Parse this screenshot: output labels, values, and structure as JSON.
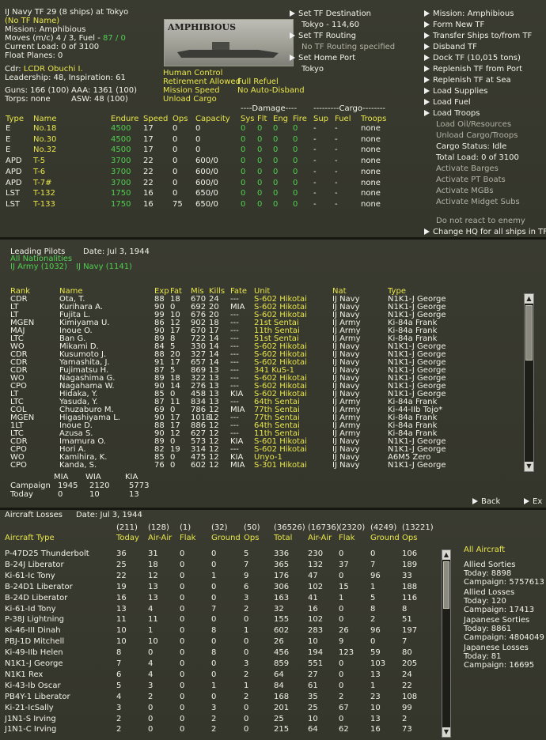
{
  "tf": {
    "header": "IJ Navy TF 29 (8 ships) at Tokyo",
    "tf_name": "(No TF Name)",
    "mission": "Mission: Amphibious",
    "moves_prefix": "Moves (m/c) 4 / 3, Fuel - ",
    "moves_fuel": "87 / 0",
    "current_load": "Current Load: 0 of 3100",
    "float_planes": "Float Planes: 0",
    "cdr_label": "Cdr: ",
    "cdr_name": "LCDR Obuchi I.",
    "leadership": "Leadership: 48, Inspiration: 61",
    "guns": "Guns: 166 (100)",
    "aaa": "AAA: 1361 (100)",
    "torps": "Torps: none",
    "asw": "ASW: 48 (100)",
    "image_title": "AMPHIBIOUS",
    "flags": [
      "Human Control",
      "Retirement Allowed",
      "Full Refuel",
      "Mission Speed",
      "No Auto-Disband",
      "Unload Cargo"
    ],
    "dest_label": "Set TF Destination",
    "dest_value": "Tokyo - 114,60",
    "routing_label": "Set TF Routing",
    "routing_value": "No TF Routing specified",
    "homeport_label": "Set Home Port",
    "homeport_value": "Tokyo",
    "damage_header": "----Damage----",
    "cargo_header": "---------Cargo--------",
    "columns": [
      "Type",
      "Name",
      "Endure",
      "Speed",
      "Ops",
      "Capacity",
      "Sys",
      "Flt",
      "Eng",
      "Fire",
      "Sup",
      "Fuel",
      "Troops"
    ],
    "ships": [
      [
        "E",
        "No.18",
        "4500",
        "17",
        "0",
        "0",
        "0",
        "0",
        "0",
        "0",
        "-",
        "-",
        "none"
      ],
      [
        "E",
        "No.30",
        "4500",
        "17",
        "0",
        "0",
        "0",
        "0",
        "0",
        "0",
        "-",
        "-",
        "none"
      ],
      [
        "E",
        "No.32",
        "4500",
        "17",
        "0",
        "0",
        "0",
        "0",
        "0",
        "0",
        "-",
        "-",
        "none"
      ],
      [
        "APD",
        "T-5",
        "3700",
        "22",
        "0",
        "600/0",
        "0",
        "0",
        "0",
        "0",
        "-",
        "-",
        "none"
      ],
      [
        "APD",
        "T-6",
        "3700",
        "22",
        "0",
        "600/0",
        "0",
        "0",
        "0",
        "0",
        "-",
        "-",
        "none"
      ],
      [
        "APD",
        "T-7#",
        "3700",
        "22",
        "0",
        "600/0",
        "0",
        "0",
        "0",
        "0",
        "-",
        "-",
        "none"
      ],
      [
        "LST",
        "T-132",
        "1750",
        "16",
        "0",
        "650/0",
        "0",
        "0",
        "0",
        "0",
        "-",
        "-",
        "none"
      ],
      [
        "LST",
        "T-133",
        "1750",
        "16",
        "75",
        "650/0",
        "0",
        "0",
        "0",
        "0",
        "-",
        "-",
        "none"
      ]
    ],
    "menu": [
      {
        "label": "Mission: Amphibious",
        "arrow": true,
        "active": true
      },
      {
        "label": "Form New TF",
        "arrow": true,
        "active": true
      },
      {
        "label": "Transfer Ships to/from TF",
        "arrow": true,
        "active": true
      },
      {
        "label": "Disband TF",
        "arrow": true,
        "active": true
      },
      {
        "label": "Dock TF (10,015 tons)",
        "arrow": true,
        "active": true
      },
      {
        "label": "Replenish TF from Port",
        "arrow": true,
        "active": true
      },
      {
        "label": "Replenish TF at Sea",
        "arrow": true,
        "active": true
      },
      {
        "label": "Load Supplies",
        "arrow": true,
        "active": true
      },
      {
        "label": "Load Fuel",
        "arrow": true,
        "active": true
      },
      {
        "label": "Load Troops",
        "arrow": true,
        "active": true
      },
      {
        "label": "Load Oil/Resources",
        "arrow": false,
        "active": false
      },
      {
        "label": "Unload Cargo/Troops",
        "arrow": false,
        "active": false
      },
      {
        "label": "Cargo Status: Idle",
        "arrow": false,
        "active": true
      },
      {
        "label": "Total Load: 0 of 3100",
        "arrow": false,
        "active": true
      },
      {
        "label": "Activate Barges",
        "arrow": false,
        "active": false
      },
      {
        "label": "Activate PT Boats",
        "arrow": false,
        "active": false
      },
      {
        "label": "Activate MGBs",
        "arrow": false,
        "active": false
      },
      {
        "label": "Activate Midget Subs",
        "arrow": false,
        "active": false
      },
      {
        "label": "Do not react to enemy",
        "arrow": false,
        "active": false
      },
      {
        "label": "Change HQ for all ships in TF",
        "arrow": true,
        "active": true
      }
    ]
  },
  "pilots": {
    "title": "Leading Pilots",
    "date": "Date: Jul 3, 1944",
    "filter_all": "All Nationalities",
    "filter_army": "IJ Army (1032)",
    "filter_navy": "IJ Navy (1141)",
    "columns": [
      "Rank",
      "Name",
      "Exp",
      "Fat",
      "Mis",
      "Kills",
      "Fate",
      "Unit",
      "Nat",
      "Type"
    ],
    "rows": [
      [
        "CDR",
        "Ota, T.",
        "88",
        "18",
        "670",
        "24",
        "---",
        "S-602 Hikotai",
        "IJ Navy",
        "N1K1-J George"
      ],
      [
        "LT",
        "Kurihara A.",
        "90",
        "0",
        "692",
        "20",
        "MIA",
        "S-602 Hikotai",
        "IJ Navy",
        "N1K1-J George"
      ],
      [
        "LT",
        "Fujita L.",
        "99",
        "10",
        "676",
        "20",
        "---",
        "S-602 Hikotai",
        "IJ Navy",
        "N1K1-J George"
      ],
      [
        "MGEN",
        "Kimiyama U.",
        "86",
        "12",
        "902",
        "18",
        "---",
        "21st Sentai",
        "IJ Army",
        "Ki-84a Frank"
      ],
      [
        "MAJ",
        "Inoue O.",
        "90",
        "17",
        "670",
        "17",
        "---",
        "11th Sentai",
        "IJ Army",
        "Ki-84a Frank"
      ],
      [
        "LTC",
        "Ban G.",
        "89",
        "8",
        "722",
        "14",
        "---",
        "51st Sentai",
        "IJ Army",
        "Ki-84a Frank"
      ],
      [
        "WO",
        "Mikami D.",
        "84",
        "5",
        "330",
        "14",
        "---",
        "S-602 Hikotai",
        "IJ Navy",
        "N1K1-J George"
      ],
      [
        "CDR",
        "Kusumoto J.",
        "88",
        "20",
        "327",
        "14",
        "---",
        "S-602 Hikotai",
        "IJ Navy",
        "N1K1-J George"
      ],
      [
        "CDR",
        "Yamashita, J.",
        "91",
        "17",
        "657",
        "14",
        "---",
        "S-602 Hikotai",
        "IJ Navy",
        "N1K1-J George"
      ],
      [
        "CDR",
        "Fujimatsu H.",
        "87",
        "5",
        "869",
        "13",
        "---",
        "341 KuS-1",
        "IJ Navy",
        "N1K1-J George"
      ],
      [
        "WO",
        "Nagashima G.",
        "89",
        "18",
        "322",
        "13",
        "---",
        "S-602 Hikotai",
        "IJ Navy",
        "N1K1-J George"
      ],
      [
        "CPO",
        "Nagahama W.",
        "90",
        "14",
        "276",
        "13",
        "---",
        "S-602 Hikotai",
        "IJ Navy",
        "N1K1-J George"
      ],
      [
        "LT",
        "Hidaka, Y.",
        "85",
        "0",
        "458",
        "13",
        "KIA",
        "S-602 Hikotai",
        "IJ Navy",
        "N1K1-J George"
      ],
      [
        "LTC",
        "Yasuda, Y.",
        "87",
        "11",
        "834",
        "13",
        "---",
        "64th Sentai",
        "IJ Army",
        "Ki-84a Frank"
      ],
      [
        "COL",
        "Chuzaburo M.",
        "69",
        "0",
        "786",
        "12",
        "MIA",
        "77th Sentai",
        "IJ Army",
        "Ki-44-IIb Tojo*"
      ],
      [
        "MGEN",
        "Higashiyama L.",
        "90",
        "17",
        "1018",
        "12",
        "---",
        "77th Sentai",
        "IJ Army",
        "Ki-84a Frank"
      ],
      [
        "1LT",
        "Inoue D.",
        "88",
        "17",
        "886",
        "12",
        "---",
        "64th Sentai",
        "IJ Army",
        "Ki-84a Frank"
      ],
      [
        "LTC",
        "Azusa S.",
        "90",
        "12",
        "627",
        "12",
        "---",
        "11th Sentai",
        "IJ Army",
        "Ki-84a Frank"
      ],
      [
        "CDR",
        "Imamura O.",
        "89",
        "0",
        "573",
        "12",
        "KIA",
        "S-601 Hikotai",
        "IJ Navy",
        "N1K1-J George"
      ],
      [
        "CPO",
        "Hori A.",
        "82",
        "19",
        "314",
        "12",
        "---",
        "S-602 Hikotai",
        "IJ Navy",
        "N1K1-J George"
      ],
      [
        "WO",
        "Kamihira, K.",
        "85",
        "0",
        "475",
        "12",
        "KIA",
        "Unyo-1",
        "IJ Navy",
        "A6M5 Zero"
      ],
      [
        "CPO",
        "Kanda, S.",
        "76",
        "0",
        "602",
        "12",
        "MIA",
        "S-301 Hikotai",
        "IJ Navy",
        "N1K1-J George"
      ]
    ],
    "summary_cols": [
      "MIA",
      "WIA",
      "KIA"
    ],
    "summary_rows": [
      {
        "label": "Campaign",
        "values": [
          "1945",
          "2120",
          "5773"
        ]
      },
      {
        "label": "Today",
        "values": [
          "0",
          "10",
          "13"
        ]
      }
    ],
    "back_label": "Back",
    "next_label": "Ex"
  },
  "losses": {
    "title": "Aircraft Losses",
    "date": "Date: Jul 3, 1944",
    "totals": [
      "(211)",
      "(128)",
      "(1)",
      "(32)",
      "(50)",
      "(36526)",
      "(16736)",
      "(2320)",
      "(4249)",
      "(13221)"
    ],
    "columns": [
      "Aircraft Type",
      "Today",
      "Air-Air",
      "Flak",
      "Ground",
      "Ops",
      "Total",
      "Air-Air",
      "Flak",
      "Ground",
      "Ops"
    ],
    "rows": [
      [
        "P-47D25 Thunderbolt",
        "36",
        "31",
        "0",
        "0",
        "5",
        "336",
        "230",
        "0",
        "0",
        "106"
      ],
      [
        "B-24J Liberator",
        "25",
        "18",
        "0",
        "0",
        "7",
        "365",
        "132",
        "37",
        "7",
        "189"
      ],
      [
        "Ki-61-Ic Tony",
        "22",
        "12",
        "0",
        "1",
        "9",
        "176",
        "47",
        "0",
        "96",
        "33"
      ],
      [
        "B-24D1 Liberator",
        "19",
        "13",
        "0",
        "0",
        "6",
        "306",
        "102",
        "15",
        "1",
        "188"
      ],
      [
        "B-24D Liberator",
        "16",
        "13",
        "0",
        "0",
        "3",
        "163",
        "41",
        "1",
        "5",
        "116"
      ],
      [
        "Ki-61-Id Tony",
        "13",
        "4",
        "0",
        "7",
        "2",
        "32",
        "16",
        "0",
        "8",
        "8"
      ],
      [
        "P-38J Lightning",
        "11",
        "11",
        "0",
        "0",
        "0",
        "155",
        "102",
        "0",
        "2",
        "51"
      ],
      [
        "Ki-46-III Dinah",
        "10",
        "1",
        "0",
        "8",
        "1",
        "602",
        "283",
        "26",
        "96",
        "197"
      ],
      [
        "PBJ-1D Mitchell",
        "10",
        "10",
        "0",
        "0",
        "0",
        "26",
        "10",
        "9",
        "0",
        "7"
      ],
      [
        "Ki-49-IIb Helen",
        "8",
        "0",
        "0",
        "8",
        "0",
        "456",
        "194",
        "123",
        "59",
        "80"
      ],
      [
        "N1K1-J George",
        "7",
        "4",
        "0",
        "0",
        "3",
        "859",
        "551",
        "0",
        "103",
        "205"
      ],
      [
        "N1K1 Rex",
        "6",
        "4",
        "0",
        "0",
        "2",
        "64",
        "27",
        "0",
        "13",
        "24"
      ],
      [
        "Ki-43-Ib Oscar",
        "5",
        "3",
        "0",
        "1",
        "1",
        "84",
        "61",
        "0",
        "1",
        "22"
      ],
      [
        "PB4Y-1 Liberator",
        "4",
        "2",
        "0",
        "0",
        "2",
        "168",
        "35",
        "2",
        "23",
        "108"
      ],
      [
        "Ki-21-IcSally",
        "3",
        "0",
        "0",
        "3",
        "0",
        "201",
        "25",
        "67",
        "10",
        "99"
      ],
      [
        "J1N1-S Irving",
        "2",
        "0",
        "0",
        "2",
        "0",
        "25",
        "10",
        "0",
        "13",
        "2"
      ],
      [
        "J1N1-C Irving",
        "2",
        "0",
        "0",
        "2",
        "0",
        "215",
        "64",
        "62",
        "16",
        "73"
      ]
    ],
    "sidebar": {
      "all_aircraft": "All Aircraft",
      "blocks": [
        {
          "title": "Allied Sorties",
          "lines": [
            "Today:  8898",
            "Campaign: 5757613"
          ]
        },
        {
          "title": "Allied Losses",
          "lines": [
            "Today:  120",
            "Campaign: 17413"
          ]
        },
        {
          "title": "Japanese Sorties",
          "lines": [
            "Today:  8861",
            "Campaign: 4804049"
          ]
        },
        {
          "title": "Japanese Losses",
          "lines": [
            "Today:  81",
            "Campaign: 16695"
          ]
        }
      ]
    }
  },
  "colors": {
    "yellow": "#e9e64a",
    "green": "#4fd04f",
    "white": "#f2f2ea",
    "grey": "#b2b2a6",
    "bg": "#3a3b30"
  }
}
